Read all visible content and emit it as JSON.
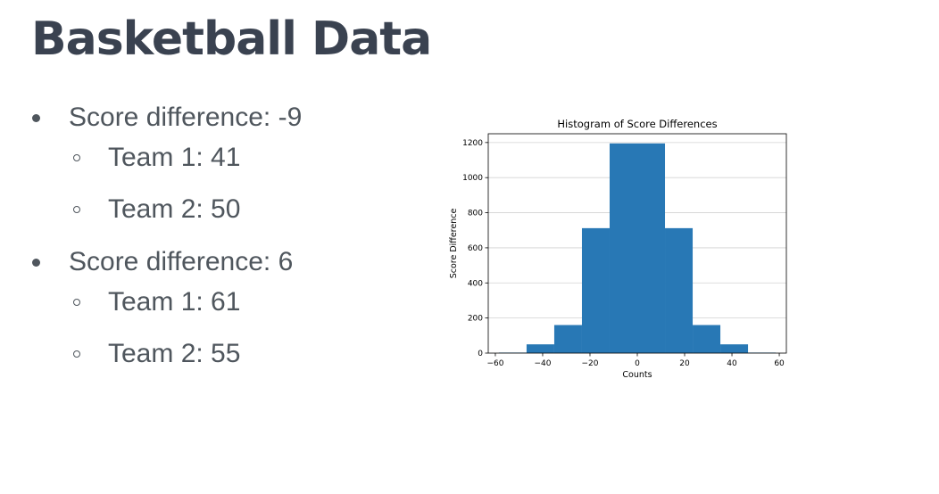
{
  "slide": {
    "title": "Basketball Data",
    "bullets": [
      {
        "label": "Score difference: -9",
        "sub": [
          "Team 1: 41",
          "Team 2: 50"
        ]
      },
      {
        "label": "Score difference: 6",
        "sub": [
          "Team 1: 61",
          "Team 2: 55"
        ]
      }
    ]
  },
  "chart_data": {
    "type": "bar",
    "title": "Histogram of Score Differences",
    "xlabel": "Counts",
    "ylabel": "Score Difference",
    "xlim": [
      -63,
      63
    ],
    "ylim": [
      0,
      1250
    ],
    "xticks": [
      -60,
      -40,
      -20,
      0,
      20,
      40,
      60
    ],
    "yticks": [
      0,
      200,
      400,
      600,
      800,
      1000,
      1200
    ],
    "grid": "horizontal",
    "bar_color": "#2878b5",
    "bins": [
      {
        "x0": -58.5,
        "x1": -46.8,
        "value": 3
      },
      {
        "x0": -46.8,
        "x1": -35.1,
        "value": 50
      },
      {
        "x0": -35.1,
        "x1": -23.4,
        "value": 160
      },
      {
        "x0": -23.4,
        "x1": -11.7,
        "value": 712
      },
      {
        "x0": -11.7,
        "x1": 0,
        "value": 1195
      },
      {
        "x0": 0,
        "x1": 11.7,
        "value": 1195
      },
      {
        "x0": 11.7,
        "x1": 23.4,
        "value": 712
      },
      {
        "x0": 23.4,
        "x1": 35.1,
        "value": 160
      },
      {
        "x0": 35.1,
        "x1": 46.8,
        "value": 50
      },
      {
        "x0": 46.8,
        "x1": 58.5,
        "value": 3
      }
    ]
  }
}
